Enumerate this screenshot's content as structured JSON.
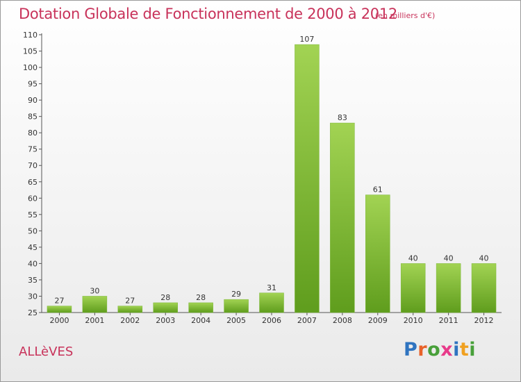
{
  "header": {
    "title": "Dotation Globale de Fonctionnement de 2000 à 2012",
    "unit": "(en milliers d'€)"
  },
  "footer": {
    "place": "ALLèVES",
    "logo": [
      "P",
      "r",
      "o",
      "x",
      "i",
      "t",
      "i"
    ]
  },
  "colors": {
    "title": "#c8325a",
    "bar_light": "#a2d353",
    "bar_dark": "#5f9d1d",
    "logo_letters": [
      "#2f74c0",
      "#e8622a",
      "#48a03a",
      "#e83a8a",
      "#2f74c0",
      "#f0a020",
      "#48a03a"
    ]
  },
  "chart_data": {
    "type": "bar",
    "categories": [
      "2000",
      "2001",
      "2002",
      "2003",
      "2004",
      "2005",
      "2006",
      "2007",
      "2008",
      "2009",
      "2010",
      "2011",
      "2012"
    ],
    "values": [
      27,
      30,
      27,
      28,
      28,
      29,
      31,
      107,
      83,
      61,
      40,
      40,
      40
    ],
    "title": "Dotation Globale de Fonctionnement de 2000 à 2012",
    "ylim": [
      25,
      110
    ],
    "yticks": [
      25,
      30,
      35,
      40,
      45,
      50,
      55,
      60,
      65,
      70,
      75,
      80,
      85,
      90,
      95,
      100,
      105,
      110
    ],
    "grid": false,
    "legend": "none"
  }
}
